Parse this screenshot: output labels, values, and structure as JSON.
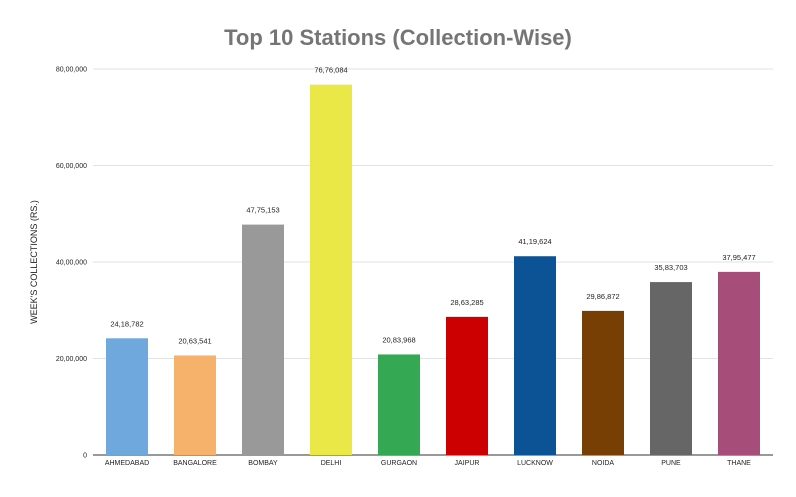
{
  "chart_data": {
    "type": "bar",
    "title": "Top 10 Stations (Collection-Wise)",
    "xlabel": "",
    "ylabel": "WEEK'S COLLECTIONS (RS.)",
    "categories": [
      "AHMEDABAD",
      "BANGALORE",
      "BOMBAY",
      "DELHI",
      "GURGAON",
      "JAIPUR",
      "LUCKNOW",
      "NOIDA",
      "PUNE",
      "THANE"
    ],
    "values": [
      2418782,
      2063541,
      4775153,
      7676084,
      2083968,
      2863285,
      4119624,
      2986872,
      3583703,
      3795477
    ],
    "value_labels": [
      "24,18,782",
      "20,63,541",
      "47,75,153",
      "76,76,084",
      "20,83,968",
      "28,63,285",
      "41,19,624",
      "29,86,872",
      "35,83,703",
      "37,95,477"
    ],
    "bar_colors": [
      "#6fa8dc",
      "#f6b26b",
      "#999999",
      "#e9e847",
      "#34a853",
      "#cc0000",
      "#0b5394",
      "#783f04",
      "#666666",
      "#a64d79"
    ],
    "ylim": [
      0,
      8000000
    ],
    "yticks": [
      0,
      2000000,
      4000000,
      6000000,
      8000000
    ],
    "ytick_labels": [
      "0",
      "20,00,000",
      "40,00,000",
      "60,00,000",
      "80,00,000"
    ],
    "grid": true,
    "legend": "none"
  }
}
